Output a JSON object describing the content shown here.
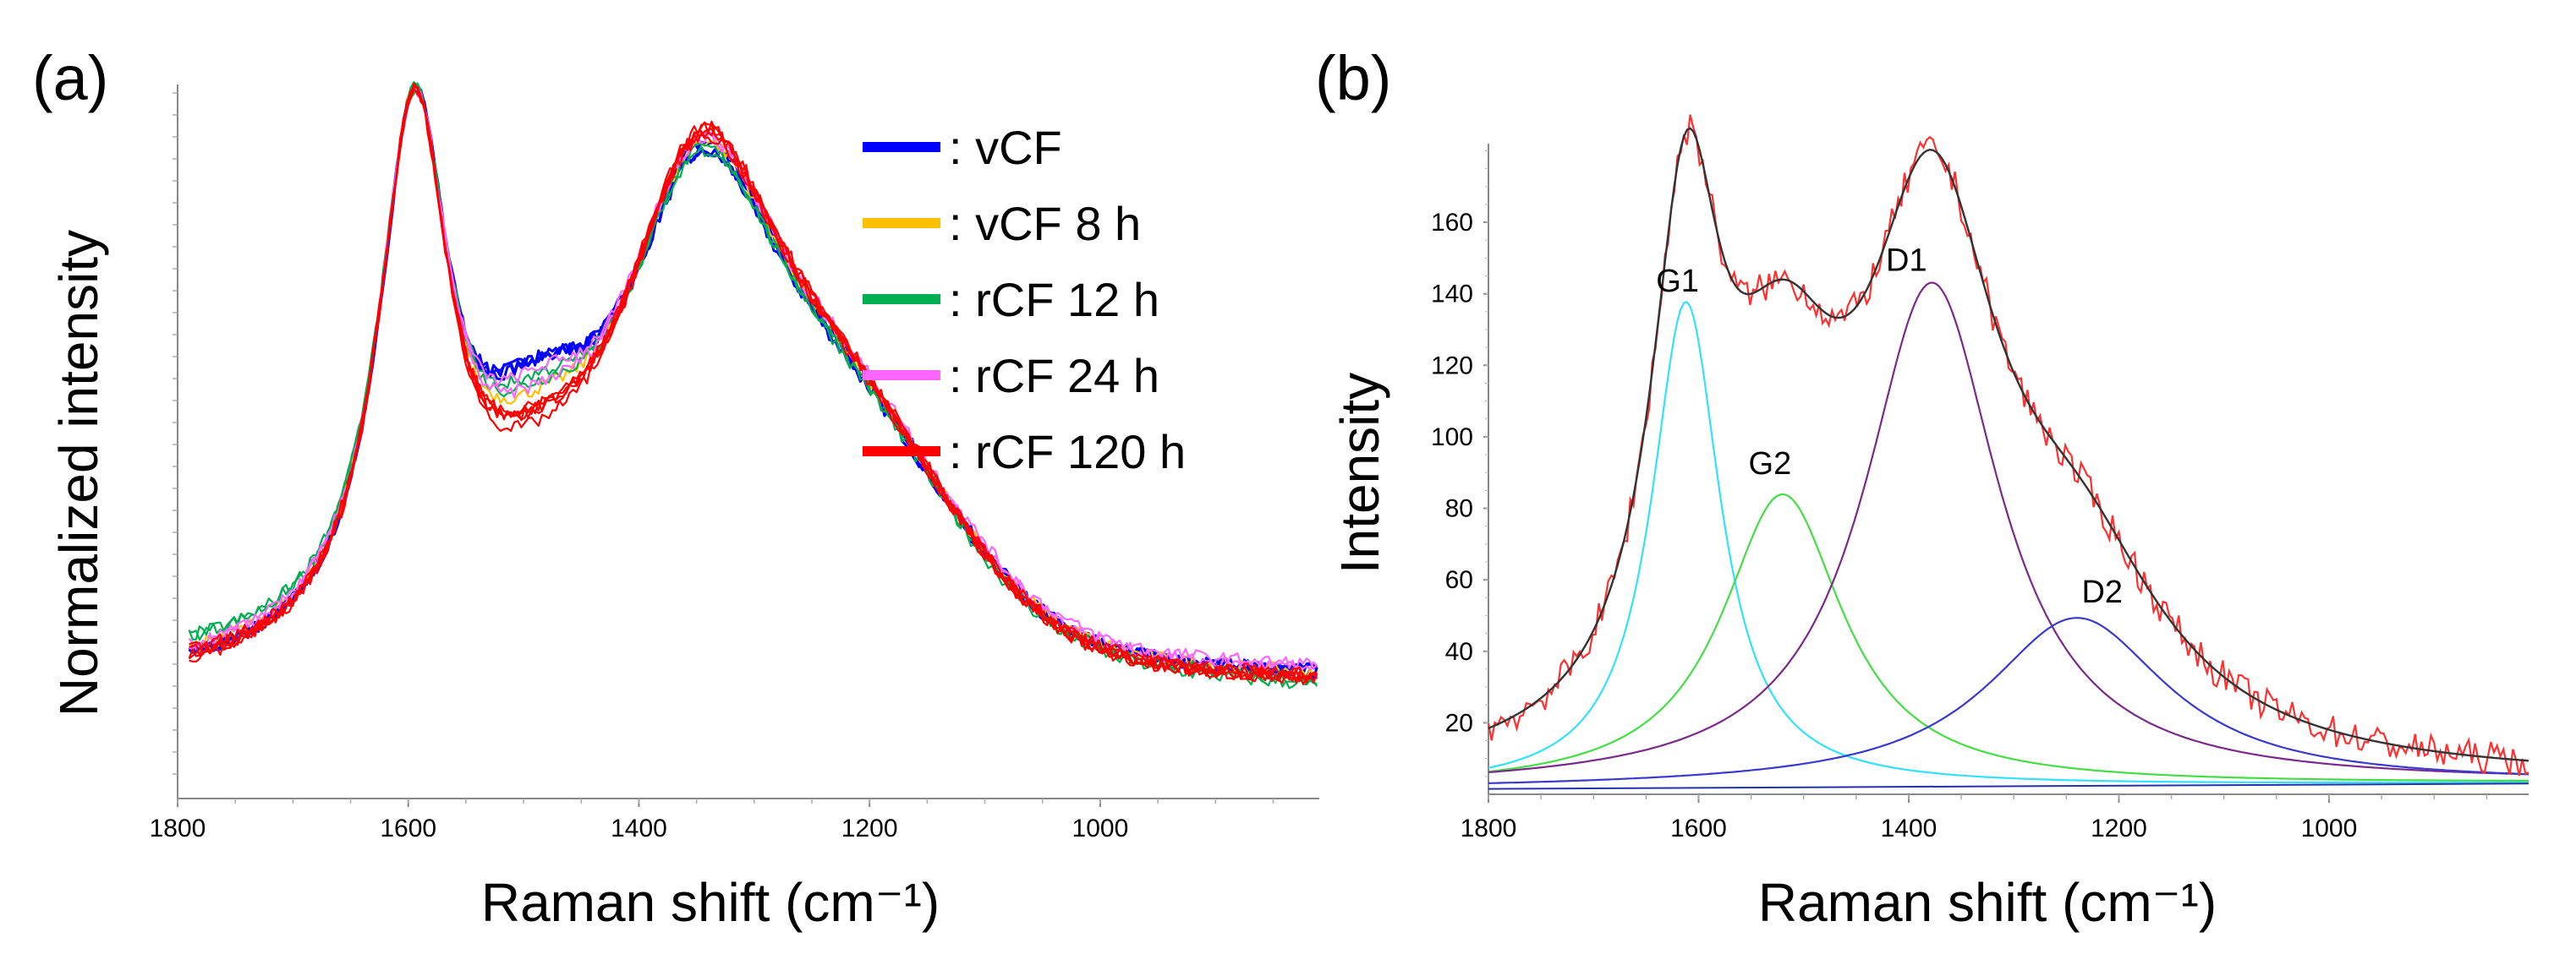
{
  "chart_data": [
    {
      "panel_label": "(a)",
      "type": "line",
      "xlabel": "Raman shift (cm⁻¹)",
      "ylabel": "Normalized intensity",
      "xlim": [
        1800,
        810
      ],
      "ylim": [
        0,
        1
      ],
      "x_ticks": [
        1800,
        1600,
        1400,
        1200,
        1000
      ],
      "y_ticks_labeled": false,
      "legend": {
        "placement": "top-right",
        "entries": [
          {
            "label": ": vCF",
            "color": "#0000ff"
          },
          {
            "label": ": vCF 8 h",
            "color": "#ffc000"
          },
          {
            "label": ": rCF 12 h",
            "color": "#00b050"
          },
          {
            "label": ": rCF 24 h",
            "color": "#ff66ff"
          },
          {
            "label": ": rCF 120 h",
            "color": "#ff0000"
          }
        ]
      },
      "series": [
        {
          "name": "vCF",
          "color": "#0000ff",
          "replicates": 3,
          "peak_g": 1.0,
          "peak_d": 0.96,
          "valley": 0.66,
          "base_left": 0.03,
          "base_right": 0.04
        },
        {
          "name": "vCF 8 h",
          "color": "#ffc000",
          "replicates": 1,
          "peak_g": 1.0,
          "peak_d": 0.97,
          "valley": 0.6,
          "base_left": 0.03,
          "base_right": 0.03
        },
        {
          "name": "rCF 12 h",
          "color": "#00b050",
          "replicates": 2,
          "peak_g": 1.0,
          "peak_d": 0.95,
          "valley": 0.62,
          "base_left": 0.05,
          "base_right": 0.02
        },
        {
          "name": "rCF 24 h",
          "color": "#ff66ff",
          "replicates": 2,
          "peak_g": 1.0,
          "peak_d": 0.97,
          "valley": 0.63,
          "base_left": 0.03,
          "base_right": 0.04
        },
        {
          "name": "rCF 120 h",
          "color": "#ff0000",
          "replicates": 5,
          "peak_g": 1.0,
          "peak_d": 0.98,
          "valley": 0.56,
          "base_left": 0.02,
          "base_right": 0.02
        }
      ]
    },
    {
      "panel_label": "(b)",
      "type": "line",
      "xlabel": "Raman shift (cm⁻¹)",
      "ylabel": "Intensity",
      "xlim": [
        1800,
        810
      ],
      "ylim": [
        0,
        182
      ],
      "x_ticks": [
        1800,
        1600,
        1400,
        1200,
        1000
      ],
      "y_ticks": [
        20,
        40,
        60,
        80,
        100,
        120,
        140,
        160
      ],
      "series": [
        {
          "name": "measured",
          "color": "#ff3030",
          "style": "noisy"
        },
        {
          "name": "fit",
          "color": "#333333"
        },
        {
          "name": "G1",
          "color": "#33e0ff",
          "center": 1612,
          "height": 136,
          "width": 40,
          "label": "G1"
        },
        {
          "name": "G2",
          "color": "#44dd44",
          "center": 1520,
          "height": 82,
          "width": 70,
          "label": "G2"
        },
        {
          "name": "D1",
          "color": "#7a2a8a",
          "center": 1378,
          "height": 141,
          "width": 78,
          "label": "D1"
        },
        {
          "name": "D2",
          "color": "#3a3acc",
          "center": 1240,
          "height": 47,
          "width": 105,
          "label": "D2"
        }
      ],
      "baseline": [
        1.5,
        3
      ]
    }
  ]
}
